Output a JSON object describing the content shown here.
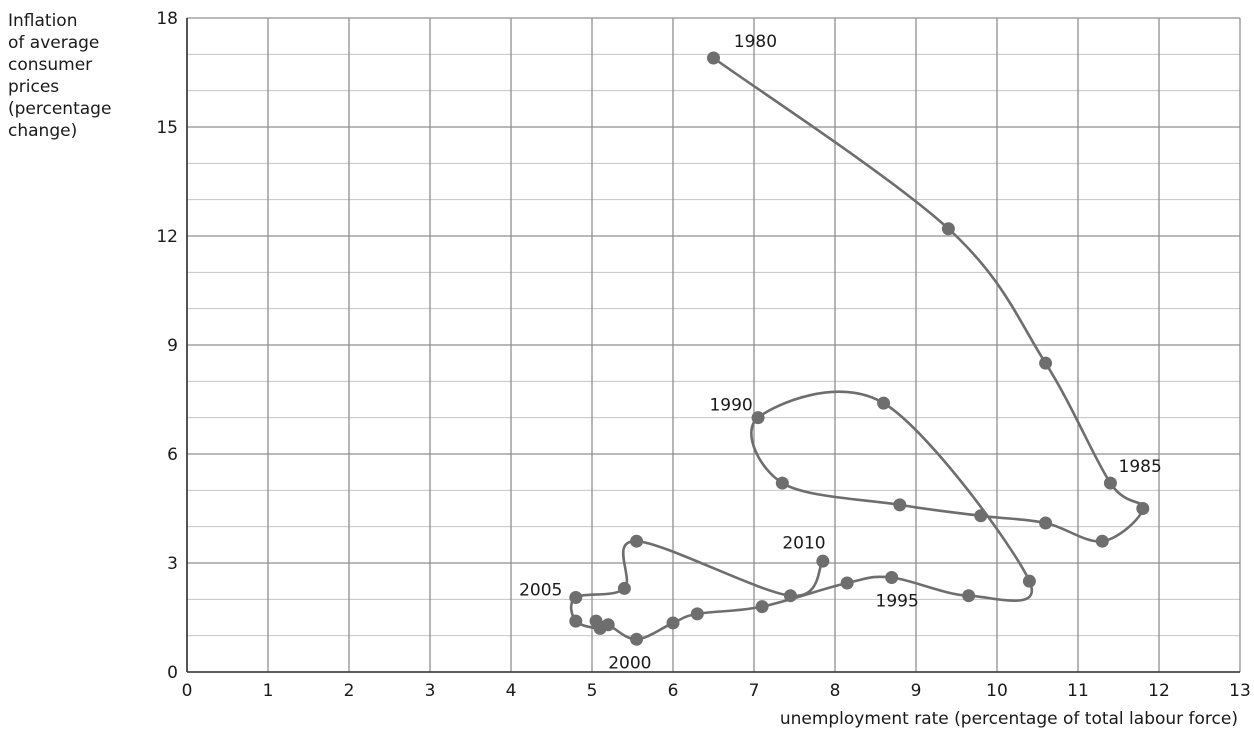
{
  "chart_data": {
    "type": "scatter",
    "title": "",
    "ylabel_lines": [
      "Inflation",
      "of average",
      "consumer",
      "prices",
      "(percentage",
      "change)"
    ],
    "xlabel": "unemployment rate (percentage of total labour force)",
    "xlim": [
      0,
      13
    ],
    "ylim": [
      0,
      18
    ],
    "x_ticks": [
      0,
      1,
      2,
      3,
      4,
      5,
      6,
      7,
      8,
      9,
      10,
      11,
      12,
      13
    ],
    "x_tick_labels": [
      "0",
      "1",
      "2",
      "3",
      "4",
      "5",
      "6",
      "7",
      "8",
      "9",
      "10",
      "11",
      "12",
      "13"
    ],
    "y_ticks": [
      0,
      3,
      6,
      9,
      12,
      15,
      18
    ],
    "y_tick_labels": [
      "0",
      "3",
      "6",
      "9",
      "12",
      "15",
      "18"
    ],
    "y_minor_step": 1,
    "grid": true,
    "connected": true,
    "series": [
      {
        "name": "",
        "color": "#6e6e6e",
        "points": [
          {
            "x": 6.5,
            "y": 16.9
          },
          {
            "x": 9.4,
            "y": 12.2
          },
          {
            "x": 10.6,
            "y": 8.5
          },
          {
            "x": 11.4,
            "y": 5.2
          },
          {
            "x": 11.8,
            "y": 4.5
          },
          {
            "x": 11.3,
            "y": 3.6
          },
          {
            "x": 10.6,
            "y": 4.1
          },
          {
            "x": 9.8,
            "y": 4.3
          },
          {
            "x": 8.8,
            "y": 4.6
          },
          {
            "x": 7.35,
            "y": 5.2
          },
          {
            "x": 7.05,
            "y": 7.0
          },
          {
            "x": 8.6,
            "y": 7.4
          },
          {
            "x": 10.4,
            "y": 2.5
          },
          {
            "x": 9.65,
            "y": 2.1
          },
          {
            "x": 8.7,
            "y": 2.6
          },
          {
            "x": 8.15,
            "y": 2.45
          },
          {
            "x": 7.1,
            "y": 1.8
          },
          {
            "x": 6.3,
            "y": 1.6
          },
          {
            "x": 6.0,
            "y": 1.35
          },
          {
            "x": 5.55,
            "y": 0.9
          },
          {
            "x": 5.2,
            "y": 1.3
          },
          {
            "x": 5.05,
            "y": 1.4
          },
          {
            "x": 5.1,
            "y": 1.2
          },
          {
            "x": 4.8,
            "y": 1.4
          },
          {
            "x": 4.8,
            "y": 2.05
          },
          {
            "x": 5.4,
            "y": 2.3
          },
          {
            "x": 5.55,
            "y": 3.6
          },
          {
            "x": 7.45,
            "y": 2.1
          },
          {
            "x": 7.85,
            "y": 3.05
          }
        ]
      }
    ],
    "annotations": [
      {
        "text": "1980",
        "x": 6.75,
        "y": 17.2
      },
      {
        "text": "1985",
        "x": 11.5,
        "y": 5.5
      },
      {
        "text": "1990",
        "x": 6.45,
        "y": 7.2
      },
      {
        "text": "1995",
        "x": 8.5,
        "y": 1.8
      },
      {
        "text": "2000",
        "x": 5.2,
        "y": 0.1
      },
      {
        "text": "2005",
        "x": 4.1,
        "y": 2.1
      },
      {
        "text": "2010",
        "x": 7.35,
        "y": 3.4
      }
    ]
  }
}
